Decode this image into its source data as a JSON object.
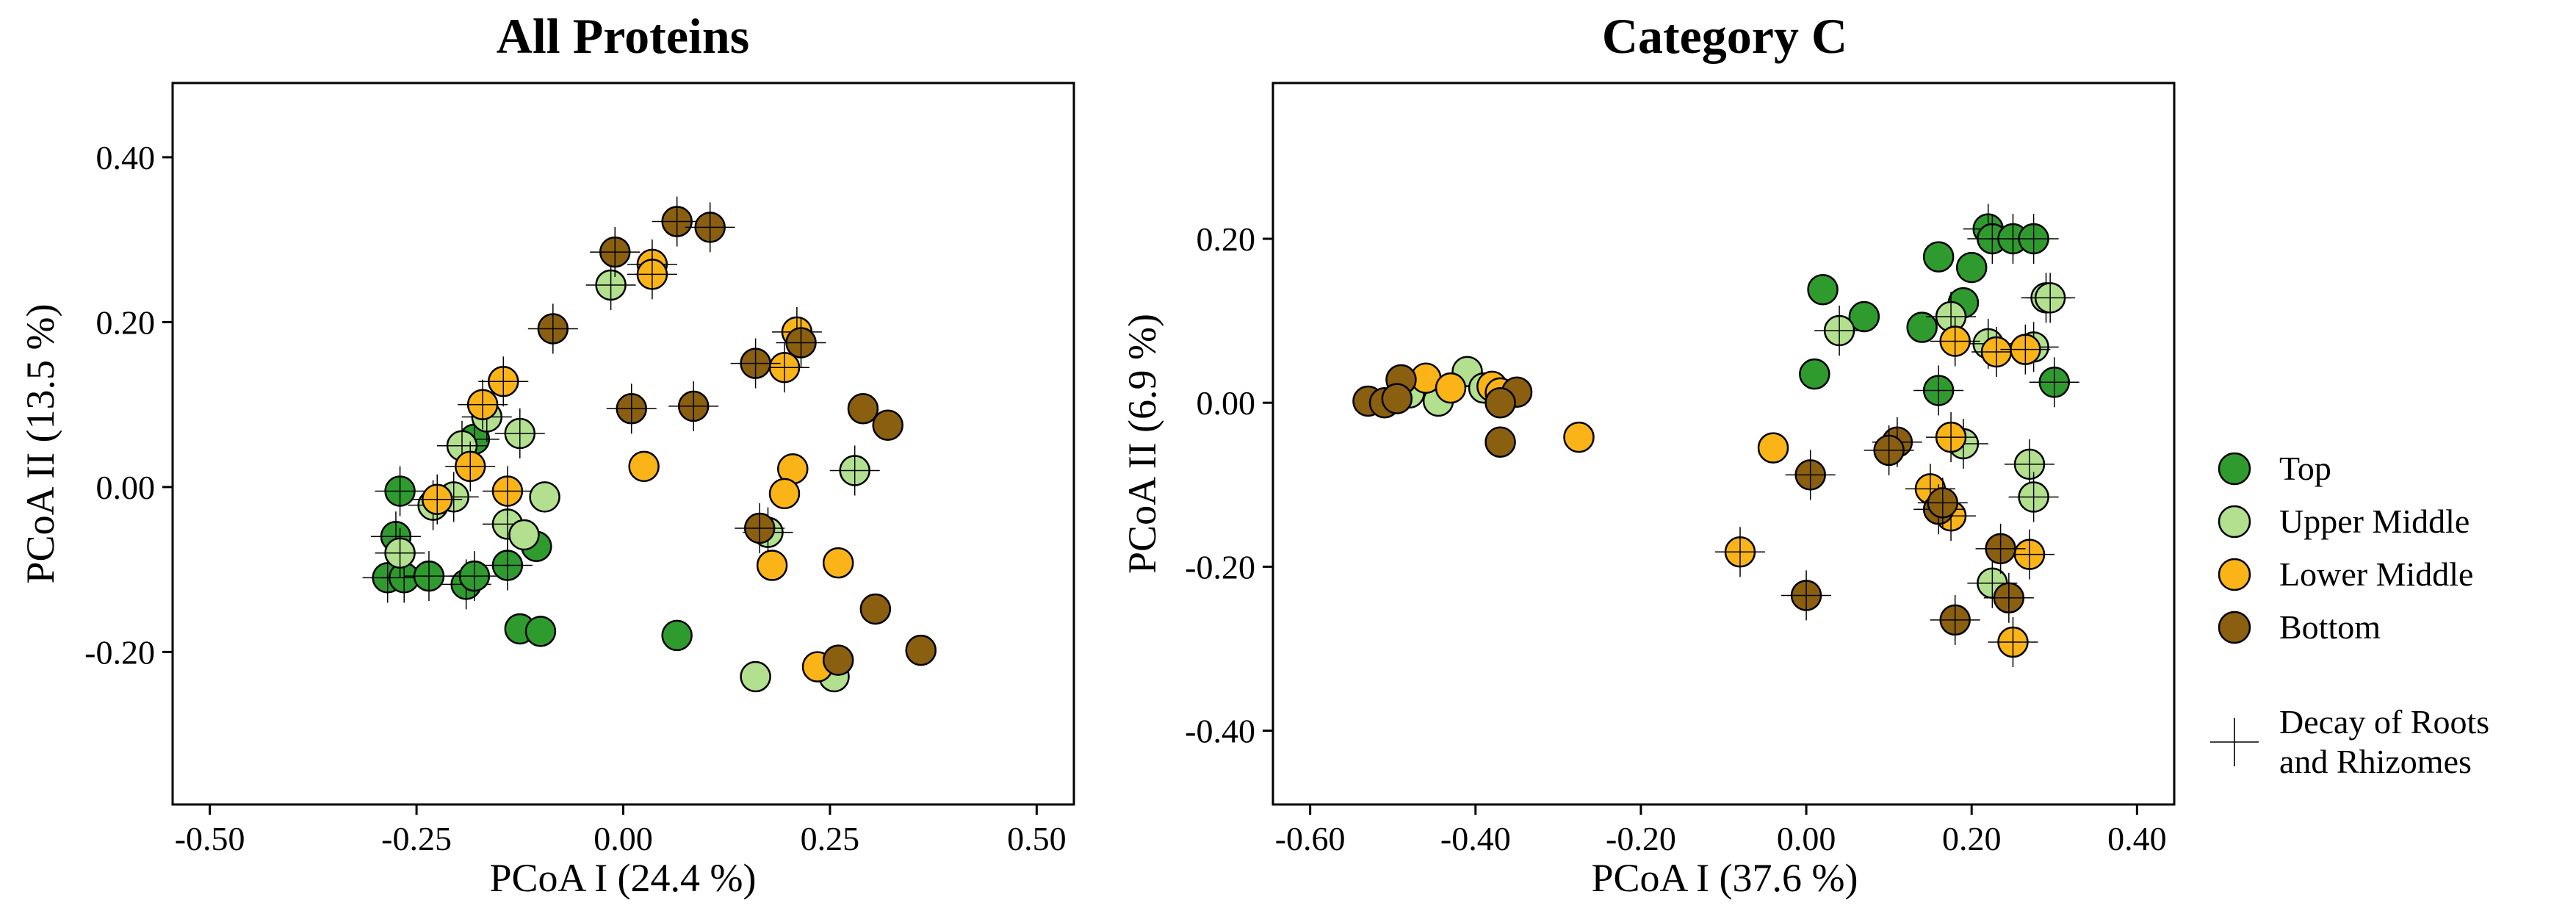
{
  "legend": {
    "items": [
      {
        "label": "Top",
        "color": "#2f9b2f"
      },
      {
        "label": "Upper Middle",
        "color": "#b3e08f"
      },
      {
        "label": "Lower Middle",
        "color": "#fbb417"
      },
      {
        "label": "Bottom",
        "color": "#8a5f10"
      }
    ],
    "decay_line1": "Decay of Roots",
    "decay_line2": "and Rhizomes"
  },
  "chart_data": [
    {
      "type": "scatter",
      "title": "All Proteins",
      "xlabel": "PCoA I (24.4 %)",
      "ylabel": "PCoA II (13.5 %)",
      "xlim": [
        -0.545,
        0.545
      ],
      "ylim": [
        -0.385,
        0.49
      ],
      "xticks": [
        -0.5,
        -0.25,
        0.0,
        0.25,
        0.5
      ],
      "xtick_labels": [
        "-0.50",
        "-0.25",
        "0.00",
        "0.25",
        "0.50"
      ],
      "yticks": [
        -0.2,
        0.0,
        0.2,
        0.4
      ],
      "ytick_labels": [
        "-0.20",
        "0.00",
        "0.20",
        "0.40"
      ],
      "grid": false,
      "series": [
        {
          "name": "Top",
          "points": [
            [
              -0.27,
              -0.005,
              1
            ],
            [
              -0.275,
              -0.06,
              1
            ],
            [
              -0.285,
              -0.11,
              1
            ],
            [
              -0.265,
              -0.11,
              1
            ],
            [
              -0.235,
              -0.108,
              1
            ],
            [
              -0.19,
              -0.118,
              1
            ],
            [
              -0.18,
              -0.108,
              1
            ],
            [
              -0.14,
              -0.095,
              1
            ],
            [
              -0.105,
              -0.072,
              0
            ],
            [
              -0.125,
              -0.172,
              0
            ],
            [
              -0.1,
              -0.175,
              0
            ],
            [
              -0.18,
              0.058,
              1
            ],
            [
              0.065,
              -0.18,
              0
            ]
          ]
        },
        {
          "name": "Upper Middle",
          "points": [
            [
              -0.27,
              -0.08,
              1
            ],
            [
              -0.23,
              -0.022,
              1
            ],
            [
              -0.205,
              -0.012,
              1
            ],
            [
              -0.195,
              0.05,
              1
            ],
            [
              -0.165,
              0.085,
              1
            ],
            [
              -0.14,
              -0.045,
              1
            ],
            [
              -0.125,
              0.065,
              1
            ],
            [
              -0.12,
              -0.058,
              0
            ],
            [
              -0.095,
              -0.012,
              0
            ],
            [
              -0.015,
              0.245,
              1
            ],
            [
              0.175,
              -0.055,
              1
            ],
            [
              0.28,
              0.02,
              1
            ],
            [
              0.16,
              -0.23,
              0
            ],
            [
              0.255,
              -0.23,
              0
            ]
          ]
        },
        {
          "name": "Lower Middle",
          "points": [
            [
              -0.225,
              -0.015,
              1
            ],
            [
              -0.185,
              0.025,
              1
            ],
            [
              -0.17,
              0.1,
              1
            ],
            [
              -0.145,
              0.128,
              1
            ],
            [
              -0.14,
              -0.005,
              1
            ],
            [
              0.035,
              0.27,
              1
            ],
            [
              0.035,
              0.258,
              1
            ],
            [
              0.025,
              0.025,
              0
            ],
            [
              0.195,
              0.145,
              1
            ],
            [
              0.21,
              0.188,
              1
            ],
            [
              0.205,
              0.022,
              0
            ],
            [
              0.195,
              -0.008,
              0
            ],
            [
              0.18,
              -0.095,
              0
            ],
            [
              0.26,
              -0.092,
              0
            ],
            [
              0.235,
              -0.218,
              0
            ]
          ]
        },
        {
          "name": "Bottom",
          "points": [
            [
              -0.085,
              0.192,
              1
            ],
            [
              -0.01,
              0.285,
              1
            ],
            [
              0.065,
              0.322,
              1
            ],
            [
              0.105,
              0.315,
              1
            ],
            [
              0.01,
              0.095,
              1
            ],
            [
              0.085,
              0.098,
              1
            ],
            [
              0.16,
              0.15,
              1
            ],
            [
              0.215,
              0.175,
              1
            ],
            [
              0.165,
              -0.05,
              1
            ],
            [
              0.29,
              0.095,
              0
            ],
            [
              0.32,
              0.075,
              0
            ],
            [
              0.305,
              -0.148,
              0
            ],
            [
              0.26,
              -0.21,
              0
            ],
            [
              0.36,
              -0.198,
              0
            ]
          ]
        }
      ]
    },
    {
      "type": "scatter",
      "title": "Category C",
      "xlabel": "PCoA I (37.6 %)",
      "ylabel": "PCoA II (6.9 %)",
      "xlim": [
        -0.645,
        0.445
      ],
      "ylim": [
        -0.49,
        0.39
      ],
      "xticks": [
        -0.6,
        -0.4,
        -0.2,
        0.0,
        0.2,
        0.4
      ],
      "xtick_labels": [
        "-0.60",
        "-0.40",
        "-0.20",
        "0.00",
        "0.20",
        "0.40"
      ],
      "yticks": [
        -0.4,
        -0.2,
        0.0,
        0.2
      ],
      "ytick_labels": [
        "-0.40",
        "-0.20",
        "0.00",
        "0.20"
      ],
      "grid": false,
      "series": [
        {
          "name": "Top",
          "points": [
            [
              0.22,
              0.212,
              1
            ],
            [
              0.225,
              0.2,
              1
            ],
            [
              0.25,
              0.2,
              1
            ],
            [
              0.275,
              0.2,
              1
            ],
            [
              0.16,
              0.178,
              0
            ],
            [
              0.2,
              0.165,
              0
            ],
            [
              0.02,
              0.138,
              0
            ],
            [
              0.07,
              0.105,
              0
            ],
            [
              0.14,
              0.092,
              0
            ],
            [
              0.19,
              0.122,
              0
            ],
            [
              0.3,
              0.025,
              1
            ],
            [
              0.01,
              0.035,
              0
            ],
            [
              0.16,
              0.015,
              1
            ]
          ]
        },
        {
          "name": "Upper Middle",
          "points": [
            [
              -0.41,
              0.038,
              0
            ],
            [
              -0.445,
              0.002,
              0
            ],
            [
              -0.48,
              0.012,
              0
            ],
            [
              -0.39,
              0.018,
              0
            ],
            [
              0.04,
              0.088,
              1
            ],
            [
              0.175,
              0.105,
              1
            ],
            [
              0.22,
              0.072,
              1
            ],
            [
              0.275,
              0.068,
              1
            ],
            [
              0.29,
              0.128,
              1
            ],
            [
              0.295,
              0.128,
              1
            ],
            [
              0.19,
              -0.05,
              1
            ],
            [
              0.27,
              -0.075,
              1
            ],
            [
              0.275,
              -0.115,
              1
            ],
            [
              0.225,
              -0.22,
              1
            ]
          ]
        },
        {
          "name": "Lower Middle",
          "points": [
            [
              -0.46,
              0.03,
              0
            ],
            [
              -0.43,
              0.018,
              0
            ],
            [
              -0.38,
              0.02,
              0
            ],
            [
              -0.37,
              0.012,
              0
            ],
            [
              -0.275,
              -0.042,
              0
            ],
            [
              -0.04,
              -0.055,
              0
            ],
            [
              -0.08,
              -0.182,
              1
            ],
            [
              0.18,
              0.075,
              1
            ],
            [
              0.23,
              0.062,
              1
            ],
            [
              0.265,
              0.065,
              1
            ],
            [
              0.175,
              -0.042,
              1
            ],
            [
              0.15,
              -0.105,
              1
            ],
            [
              0.175,
              -0.138,
              1
            ],
            [
              0.27,
              -0.185,
              1
            ],
            [
              0.25,
              -0.292,
              1
            ]
          ]
        },
        {
          "name": "Bottom",
          "points": [
            [
              -0.53,
              0.002,
              0
            ],
            [
              -0.51,
              0.0,
              0
            ],
            [
              -0.49,
              0.028,
              0
            ],
            [
              -0.495,
              0.005,
              0
            ],
            [
              -0.35,
              0.013,
              0
            ],
            [
              -0.37,
              0.0,
              0
            ],
            [
              -0.37,
              -0.048,
              0
            ],
            [
              0.11,
              -0.048,
              1
            ],
            [
              0.1,
              -0.058,
              1
            ],
            [
              0.005,
              -0.088,
              1
            ],
            [
              0.16,
              -0.13,
              1
            ],
            [
              0.165,
              -0.122,
              1
            ],
            [
              0.235,
              -0.178,
              1
            ],
            [
              0.245,
              -0.238,
              1
            ],
            [
              0.18,
              -0.265,
              1
            ],
            [
              0.0,
              -0.235,
              1
            ]
          ]
        }
      ]
    }
  ]
}
